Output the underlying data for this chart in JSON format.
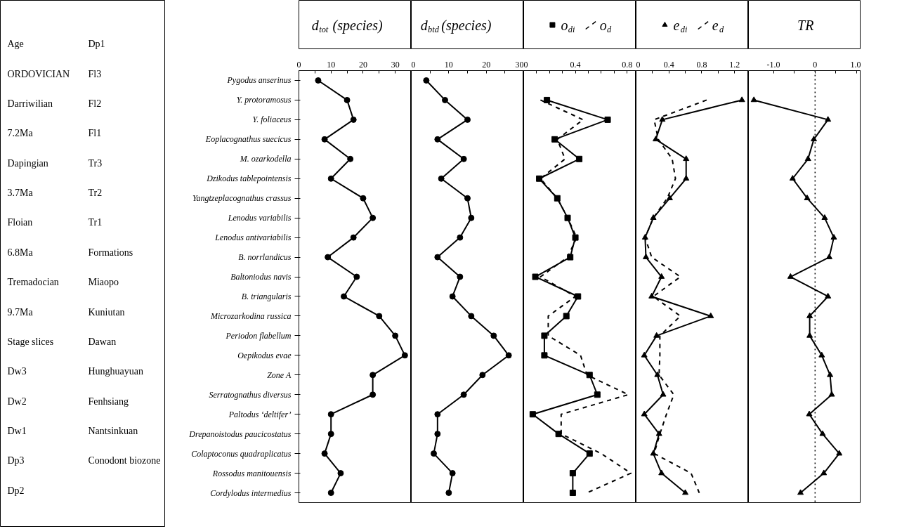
{
  "chart_data": [
    {
      "type": "other",
      "annotations": [
        "Age",
        "ORDOVICIAN",
        "Darriwilian",
        "7.2Ma",
        "Dapingian",
        "3.7Ma",
        "Floian",
        "6.8Ma",
        "Tremadocian",
        "9.7Ma",
        "Stage slices",
        "Dw3",
        "Dw2",
        "Dw1",
        "Dp3",
        "Dp2",
        "Dp1",
        "Fl3",
        "Fl2",
        "Fl1",
        "Tr3",
        "Tr2",
        "Tr1",
        "Formations",
        "Miaopo",
        "Kuniutan",
        "Dawan",
        "Hunghuayuan",
        "Fenhsiang",
        "Nantsinkuan",
        "Conodont biozone"
      ]
    },
    {
      "type": "line",
      "orientation": "horizontal",
      "title": "d$_{tot}$(species)",
      "categories": [
        "Pygodus anserinus",
        "Y. protoramosus",
        "Y. foliaceus",
        "Eoplacognathus suecicus",
        "M. ozarkodella",
        "Dzikodus tablepointensis",
        "Yangtzeplacognathus crassus",
        "Lenodus variabilis",
        "Lenodus antivariabilis",
        "B. norrlandicus",
        "Baltoniodus navis",
        "B. triangularis",
        "Microzarkodina russica",
        "Periodon flabellum",
        "Oepikodus evae",
        "Zone A",
        "Serratognathus diversus",
        "Paltodus ‘deltifer’",
        "Drepanoistodus paucicostatus",
        "Colaptoconus quadraplicatus",
        "Rossodus manitouensis",
        "Cordylodus intermedius"
      ],
      "values": [
        6,
        15,
        17,
        8,
        16,
        10,
        20,
        23,
        17,
        9,
        18,
        14,
        25,
        30,
        33,
        23,
        23,
        10,
        10,
        8,
        13,
        10
      ],
      "color": "#000000",
      "marker": "circle",
      "line_style": "solid",
      "xlim": [
        0,
        35
      ],
      "xticks": [
        0,
        {
          "value": 5,
          "label": null
        },
        10,
        {
          "value": 15,
          "label": null
        },
        20,
        {
          "value": 25,
          "label": null
        },
        30,
        {
          "value": 35,
          "label": null
        }
      ]
    },
    {
      "type": "line",
      "orientation": "horizontal",
      "title": "d$_{btd}$ (species)",
      "tick_labels": "x",
      "values": [
        4,
        9,
        15,
        7,
        14,
        8,
        15,
        16,
        13,
        7,
        13,
        11,
        16,
        22,
        26,
        19,
        14,
        7,
        7,
        6,
        11,
        10
      ],
      "color": "#000000",
      "marker": "circle",
      "line_style": "solid",
      "xlim": [
        0,
        30
      ],
      "xticks": [
        0,
        {
          "value": 5,
          "label": null
        },
        10,
        {
          "value": 15,
          "label": null
        },
        20,
        {
          "value": 25,
          "label": null
        },
        30
      ]
    },
    {
      "type": "line",
      "orientation": "horizontal",
      "tick_labels": "x",
      "legend": "top",
      "xlim": [
        0,
        0.87
      ],
      "xticks": [
        0,
        {
          "value": 0.1,
          "label": null
        },
        {
          "value": 0.2,
          "label": null
        },
        {
          "value": 0.3,
          "label": null
        },
        0.4,
        {
          "value": 0.5,
          "label": null
        },
        {
          "value": 0.6,
          "label": null
        },
        {
          "value": 0.7,
          "label": null
        },
        0.8
      ],
      "series": [
        {
          "name": "o$_{di}$",
          "color": "#000000",
          "marker": "square",
          "line_style": "solid",
          "values": [
            null,
            0.18,
            0.65,
            0.24,
            0.43,
            0.12,
            0.26,
            0.34,
            0.4,
            0.36,
            0.09,
            0.42,
            0.33,
            0.16,
            0.16,
            0.51,
            0.57,
            0.07,
            0.27,
            0.51,
            0.38,
            0.38
          ]
        },
        {
          "name": "o$_{d}$",
          "color": "#000000",
          "marker": "none",
          "line_style": "dashed",
          "values": [
            null,
            0.13,
            0.46,
            0.26,
            0.32,
            0.13,
            0.26,
            0.34,
            0.41,
            0.34,
            0.13,
            0.4,
            0.19,
            0.19,
            0.44,
            0.49,
            0.81,
            0.29,
            0.29,
            0.6,
            0.83,
            0.49
          ]
        }
      ]
    },
    {
      "type": "line",
      "orientation": "horizontal",
      "tick_labels": "x",
      "legend": "top",
      "xlim": [
        0,
        1.37
      ],
      "xticks": [
        0,
        {
          "value": 0.2,
          "label": null
        },
        0.4,
        {
          "value": 0.6,
          "label": null
        },
        0.8,
        {
          "value": 1.0,
          "label": null
        },
        1.2
      ],
      "series": [
        {
          "name": "e$_{di}$",
          "color": "#000000",
          "marker": "triangle",
          "line_style": "solid",
          "values": [
            null,
            1.29,
            0.32,
            0.24,
            0.61,
            0.61,
            0.41,
            0.21,
            0.11,
            0.12,
            0.31,
            0.19,
            0.91,
            0.25,
            0.1,
            0.26,
            0.33,
            0.1,
            0.28,
            0.21,
            0.31,
            0.6
          ]
        },
        {
          "name": "e$_{d}$",
          "color": "#000000",
          "marker": "none",
          "line_style": "dashed",
          "values": [
            null,
            0.86,
            0.22,
            0.27,
            0.44,
            0.48,
            0.38,
            0.21,
            0.11,
            0.19,
            0.54,
            0.21,
            0.54,
            0.29,
            0.29,
            0.28,
            0.46,
            0.37,
            0.29,
            0.22,
            0.67,
            0.77
          ]
        }
      ]
    },
    {
      "type": "line",
      "orientation": "horizontal",
      "title": "TR",
      "tick_labels": "x",
      "values": [
        null,
        -1.47,
        0.31,
        -0.03,
        -0.17,
        -0.54,
        -0.19,
        0.23,
        0.45,
        0.34,
        -0.59,
        0.31,
        -0.13,
        -0.13,
        0.16,
        0.36,
        0.4,
        -0.14,
        0.18,
        0.58,
        0.21,
        -0.35
      ],
      "color": "#000000",
      "marker": "triangle",
      "line_style": "solid",
      "xlim": [
        -1.6,
        1.1
      ],
      "xticks": [
        {
          "value": -1,
          "label": "-1.0"
        },
        {
          "value": -0.5,
          "label": null
        },
        0,
        {
          "value": 0.5,
          "label": null
        },
        {
          "value": 1,
          "label": "1.0"
        }
      ],
      "ref_lines": [
        {
          "axis": "x",
          "value": 0,
          "color": "#000000",
          "line_style": "dotted"
        }
      ]
    }
  ]
}
